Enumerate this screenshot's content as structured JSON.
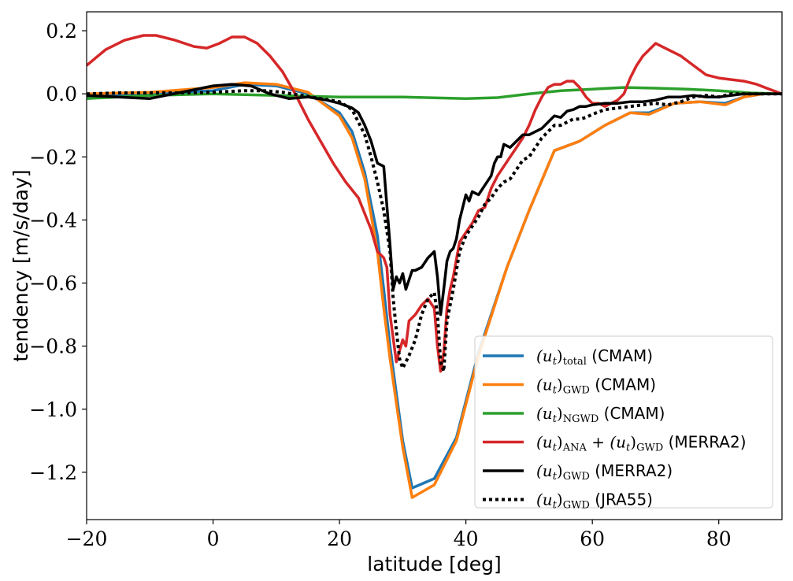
{
  "chart_data": {
    "type": "line",
    "xlabel": "latitude [deg]",
    "ylabel": "tendency [m/s/day]",
    "xlim": [
      -20,
      90
    ],
    "ylim": [
      -1.35,
      0.26
    ],
    "xticks": [
      -20,
      0,
      20,
      40,
      60,
      80
    ],
    "xtick_labels": [
      "−20",
      "0",
      "20",
      "40",
      "60",
      "80"
    ],
    "yticks": [
      0.2,
      0.0,
      -0.2,
      -0.4,
      -0.6,
      -0.8,
      -1.0,
      -1.2
    ],
    "ytick_labels": [
      "0.2",
      "0.0",
      "−0.2",
      "−0.4",
      "−0.6",
      "−0.8",
      "−1.0",
      "−1.2"
    ],
    "grid": false,
    "legend_position": "lower-right",
    "series": [
      {
        "name": "(u_t)_total (CMAM)",
        "legend": {
          "main": "(u",
          "sub1": "t",
          "close": ")",
          "sub2": "total",
          "suffix": " (CMAM)"
        },
        "color": "#1f77b4",
        "style": "solid",
        "width": 3.5,
        "x": [
          -20,
          -10,
          0,
          5,
          10,
          15,
          20,
          22,
          24,
          26,
          27,
          28,
          29,
          30,
          31.5,
          35,
          38.5,
          42,
          46.5,
          50,
          54,
          58,
          62,
          66,
          69,
          73,
          77,
          81,
          84,
          87,
          90
        ],
        "y": [
          -0.01,
          0.0,
          0.01,
          0.03,
          0.025,
          0.0,
          -0.06,
          -0.12,
          -0.25,
          -0.45,
          -0.62,
          -0.8,
          -0.95,
          -1.1,
          -1.25,
          -1.22,
          -1.09,
          -0.82,
          -0.55,
          -0.37,
          -0.18,
          -0.15,
          -0.1,
          -0.06,
          -0.06,
          -0.03,
          -0.025,
          -0.03,
          -0.01,
          0.0,
          0.0
        ]
      },
      {
        "name": "(u_t)_GWD (CMAM)",
        "legend": {
          "main": "(u",
          "sub1": "t",
          "close": ")",
          "sub2": "GWD",
          "suffix": " (CMAM)"
        },
        "color": "#ff7f0e",
        "style": "solid",
        "width": 3.5,
        "x": [
          -20,
          -10,
          0,
          5,
          10,
          15,
          20,
          22,
          24,
          26,
          27,
          28,
          29,
          30,
          31.5,
          35,
          38.5,
          42,
          46.5,
          50,
          54,
          58,
          62,
          66,
          69,
          73,
          77,
          81,
          84,
          87,
          90
        ],
        "y": [
          0.0,
          0.005,
          0.02,
          0.035,
          0.03,
          0.005,
          -0.07,
          -0.14,
          -0.27,
          -0.5,
          -0.68,
          -0.84,
          -0.98,
          -1.12,
          -1.28,
          -1.24,
          -1.1,
          -0.83,
          -0.55,
          -0.37,
          -0.18,
          -0.15,
          -0.1,
          -0.06,
          -0.065,
          -0.03,
          -0.025,
          -0.035,
          -0.01,
          0.0,
          0.0
        ]
      },
      {
        "name": "(u_t)_NGWD (CMAM)",
        "legend": {
          "main": "(u",
          "sub1": "t",
          "close": ")",
          "sub2": "NGWD",
          "suffix": " (CMAM)"
        },
        "color": "#2ca02c",
        "style": "solid",
        "width": 3.5,
        "x": [
          -20,
          -10,
          0,
          10,
          20,
          30,
          40,
          45,
          50,
          55,
          60,
          65,
          70,
          75,
          80,
          85,
          90
        ],
        "y": [
          -0.015,
          -0.005,
          0.0,
          -0.005,
          -0.01,
          -0.01,
          -0.015,
          -0.012,
          0.0,
          0.01,
          0.015,
          0.02,
          0.018,
          0.015,
          0.01,
          0.003,
          0.0
        ]
      },
      {
        "name": "(u_t)_ANA + (u_t)_GWD (MERRA2)",
        "legend": {
          "main": "(u",
          "sub1": "t",
          "close": ")",
          "sub2": "ANA",
          "mid": " + (u",
          "sub3": "t",
          "close2": ")",
          "sub4": "GWD",
          "suffix": " (MERRA2)"
        },
        "color": "#d62728",
        "style": "solid",
        "width": 3.5,
        "x": [
          -20,
          -17,
          -14,
          -11,
          -9,
          -6,
          -3,
          -1,
          1,
          3,
          5,
          7,
          9,
          11,
          13,
          15,
          17,
          19,
          21,
          23,
          25,
          26,
          27,
          27.5,
          28,
          29,
          30,
          30.5,
          31,
          32,
          33,
          34,
          35,
          35.5,
          36,
          36.5,
          37,
          37.5,
          38,
          39,
          40,
          41,
          42,
          43,
          44,
          45,
          46,
          47,
          48,
          49,
          50,
          51,
          52,
          53,
          54,
          55,
          56,
          57,
          58,
          59,
          60,
          61,
          62,
          63,
          64,
          65,
          66,
          67,
          68,
          69,
          70,
          71,
          72,
          74,
          76,
          78,
          80,
          82,
          84,
          86,
          88,
          90
        ],
        "y": [
          0.09,
          0.14,
          0.17,
          0.185,
          0.185,
          0.17,
          0.15,
          0.145,
          0.16,
          0.18,
          0.18,
          0.16,
          0.12,
          0.07,
          0.0,
          -0.08,
          -0.15,
          -0.22,
          -0.28,
          -0.33,
          -0.43,
          -0.5,
          -0.52,
          -0.55,
          -0.7,
          -0.85,
          -0.78,
          -0.8,
          -0.72,
          -0.7,
          -0.67,
          -0.65,
          -0.68,
          -0.8,
          -0.88,
          -0.82,
          -0.68,
          -0.62,
          -0.58,
          -0.47,
          -0.44,
          -0.41,
          -0.37,
          -0.36,
          -0.3,
          -0.26,
          -0.23,
          -0.2,
          -0.17,
          -0.14,
          -0.1,
          -0.05,
          -0.01,
          0.02,
          0.03,
          0.03,
          0.04,
          0.04,
          0.02,
          -0.01,
          -0.03,
          -0.03,
          -0.04,
          -0.03,
          -0.02,
          0.0,
          0.05,
          0.09,
          0.12,
          0.14,
          0.16,
          0.15,
          0.14,
          0.12,
          0.09,
          0.06,
          0.05,
          0.045,
          0.04,
          0.03,
          0.015,
          0.0
        ]
      },
      {
        "name": "(u_t)_GWD (MERRA2)",
        "legend": {
          "main": "(u",
          "sub1": "t",
          "close": ")",
          "sub2": "GWD",
          "suffix": " (MERRA2)"
        },
        "color": "#000000",
        "style": "solid",
        "width": 3.5,
        "x": [
          -20,
          -15,
          -10,
          -5,
          0,
          3,
          6,
          9,
          12,
          15,
          18,
          20,
          22,
          23,
          24,
          25,
          26,
          27,
          28,
          28.5,
          29,
          29.5,
          30,
          30.5,
          31,
          31.5,
          32,
          33,
          34,
          35,
          35.5,
          36,
          36.5,
          37,
          37.5,
          38,
          38.5,
          39,
          40,
          40.5,
          41,
          42,
          43,
          44,
          44.5,
          45,
          45.5,
          46,
          47,
          48,
          49,
          50,
          51,
          52,
          53,
          54,
          55,
          56,
          57,
          58,
          59,
          60,
          62,
          64,
          66,
          68,
          70,
          72,
          74,
          76,
          78,
          80,
          82,
          84,
          86,
          88,
          90
        ],
        "y": [
          -0.005,
          -0.01,
          -0.015,
          0.005,
          0.025,
          0.03,
          0.025,
          0.0,
          -0.015,
          -0.01,
          -0.02,
          -0.03,
          -0.045,
          -0.06,
          -0.1,
          -0.15,
          -0.22,
          -0.23,
          -0.48,
          -0.62,
          -0.58,
          -0.6,
          -0.57,
          -0.62,
          -0.59,
          -0.56,
          -0.56,
          -0.55,
          -0.52,
          -0.5,
          -0.58,
          -0.7,
          -0.62,
          -0.53,
          -0.5,
          -0.49,
          -0.46,
          -0.4,
          -0.32,
          -0.34,
          -0.31,
          -0.32,
          -0.29,
          -0.26,
          -0.22,
          -0.2,
          -0.2,
          -0.16,
          -0.17,
          -0.15,
          -0.13,
          -0.13,
          -0.12,
          -0.11,
          -0.09,
          -0.07,
          -0.075,
          -0.055,
          -0.05,
          -0.04,
          -0.04,
          -0.035,
          -0.03,
          -0.03,
          -0.025,
          -0.025,
          -0.02,
          -0.01,
          -0.01,
          -0.005,
          -0.01,
          -0.01,
          -0.005,
          0.0,
          0.0,
          0.0,
          0.0
        ]
      },
      {
        "name": "(u_t)_GWD (JRA55)",
        "legend": {
          "main": "(u",
          "sub1": "t",
          "close": ")",
          "sub2": "GWD",
          "suffix": " (JRA55)"
        },
        "color": "#000000",
        "style": "dotted",
        "width": 4,
        "x": [
          -20,
          -15,
          -10,
          -5,
          0,
          5,
          8,
          11,
          14,
          17,
          20,
          22,
          23,
          24,
          25,
          26,
          27,
          28,
          28.5,
          29,
          29.5,
          30,
          31,
          32,
          33,
          34,
          35,
          35.5,
          36,
          36.5,
          37,
          38,
          39,
          40,
          41,
          42,
          43,
          44,
          45,
          46,
          47,
          48,
          49,
          50,
          51,
          52,
          53,
          54,
          55,
          56,
          57,
          58,
          59,
          60,
          62,
          64,
          66,
          68,
          70,
          72,
          74,
          76,
          78,
          80,
          82,
          84,
          86,
          88,
          90
        ],
        "y": [
          0.0,
          0.003,
          0.003,
          0.003,
          0.005,
          0.01,
          0.01,
          0.005,
          -0.005,
          -0.015,
          -0.025,
          -0.05,
          -0.09,
          -0.13,
          -0.2,
          -0.28,
          -0.37,
          -0.5,
          -0.65,
          -0.75,
          -0.84,
          -0.87,
          -0.83,
          -0.78,
          -0.7,
          -0.65,
          -0.63,
          -0.7,
          -0.85,
          -0.88,
          -0.72,
          -0.62,
          -0.5,
          -0.45,
          -0.42,
          -0.39,
          -0.35,
          -0.33,
          -0.3,
          -0.28,
          -0.27,
          -0.24,
          -0.21,
          -0.2,
          -0.17,
          -0.14,
          -0.12,
          -0.1,
          -0.1,
          -0.09,
          -0.08,
          -0.08,
          -0.075,
          -0.065,
          -0.05,
          -0.045,
          -0.04,
          -0.035,
          -0.03,
          -0.035,
          -0.025,
          -0.01,
          -0.005,
          -0.01,
          0.0,
          0.0,
          0.0,
          0.0,
          0.0
        ]
      }
    ]
  }
}
